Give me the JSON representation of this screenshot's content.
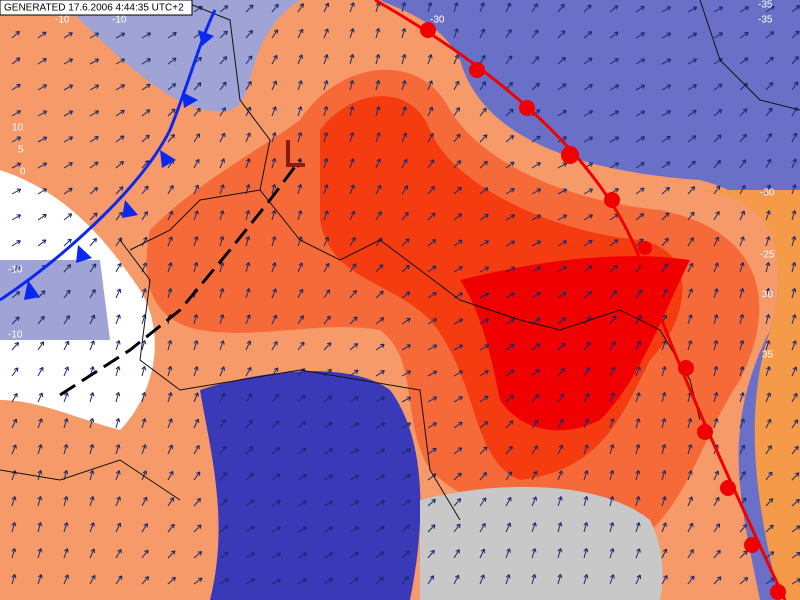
{
  "header": {
    "generated": "GENERATED 17.6.2006 4:44:35 UTC+2"
  },
  "contour_labels": [
    "10",
    "5",
    "0",
    "-5",
    "-10",
    "-10",
    "15",
    "-10",
    "-10",
    "-30",
    "-35",
    "-35",
    "-30",
    "-25",
    "30",
    "35"
  ]
}
